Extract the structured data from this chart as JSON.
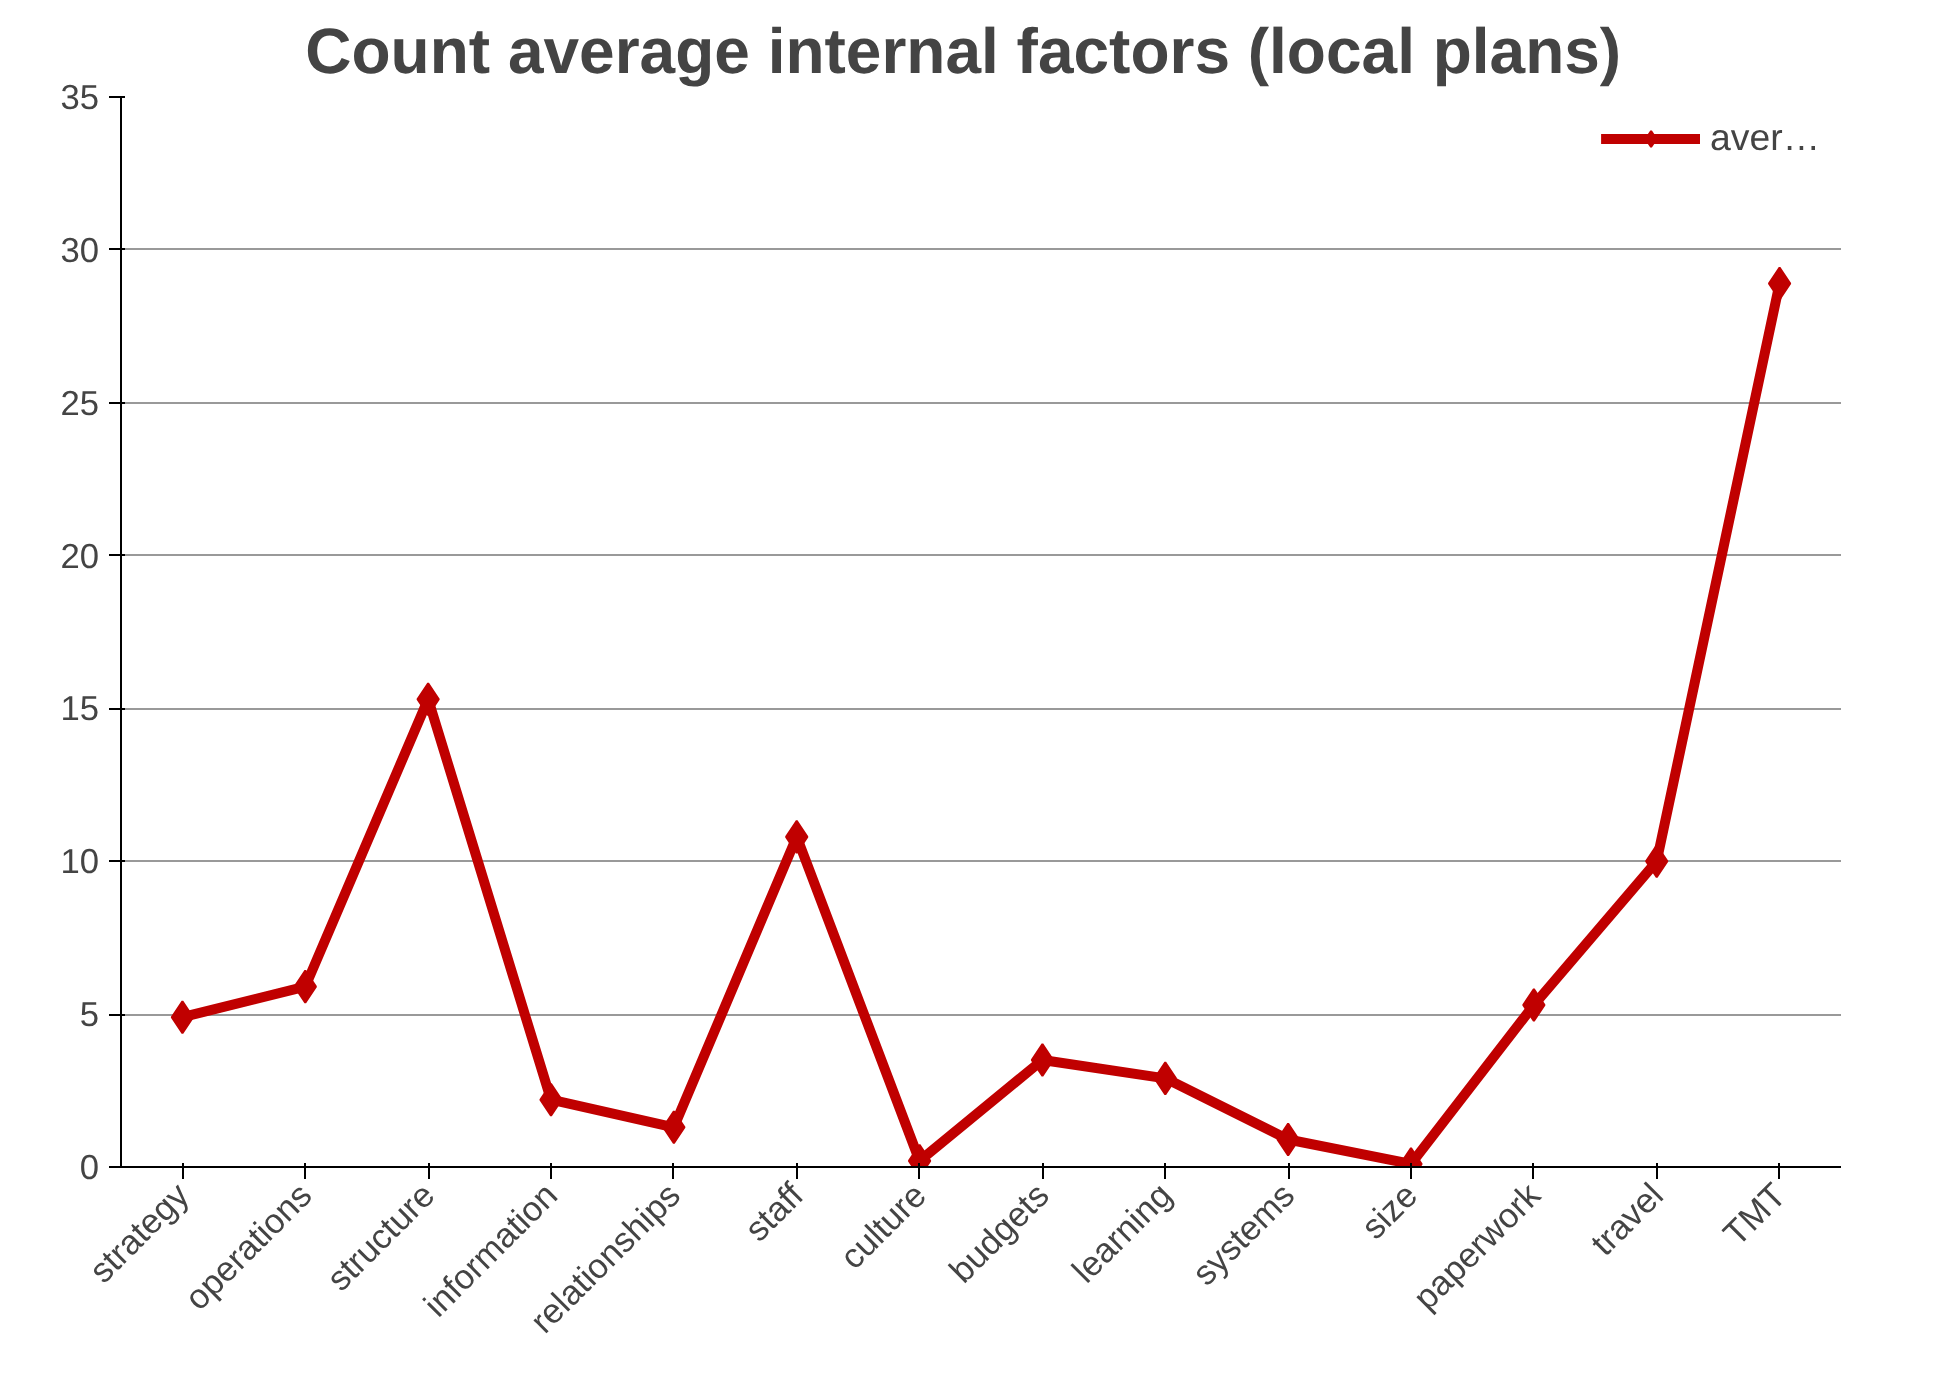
{
  "chart_data": {
    "type": "line",
    "title": "Count   average internal factors (local plans)",
    "categories": [
      "strategy",
      "operations",
      "structure",
      "information",
      "relationships",
      "staff",
      "culture",
      "budgets",
      "learning",
      "systems",
      "size",
      "paperwork",
      "travel",
      "TMT"
    ],
    "series": [
      {
        "name": "aver…",
        "color": "#c00000",
        "values": [
          4.9,
          5.9,
          15.3,
          2.2,
          1.3,
          10.8,
          0.2,
          3.5,
          2.9,
          0.9,
          0.1,
          5.3,
          10.0,
          28.9
        ]
      }
    ],
    "ylim": [
      0,
      35
    ],
    "yticks": [
      0,
      5,
      10,
      15,
      20,
      25,
      30,
      35
    ],
    "grid": "y",
    "legend": "top right",
    "marker": "diamond",
    "line_style": "solid"
  }
}
